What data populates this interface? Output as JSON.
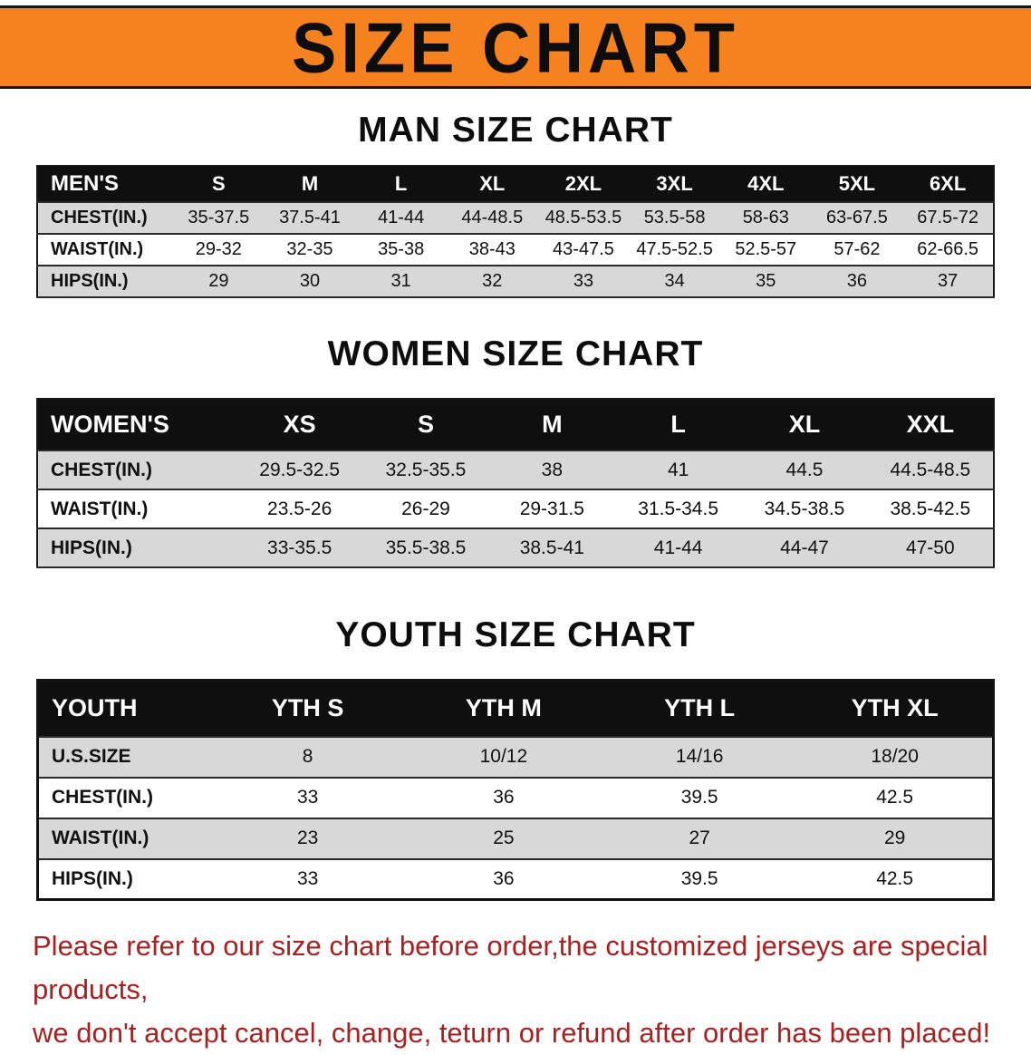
{
  "banner": {
    "title": "SIZE CHART"
  },
  "colors": {
    "banner_bg": "#f5821f",
    "table_header_bg": "#0f0f0f",
    "row_alt": "#d8d8d8",
    "footer_text": "#a82020"
  },
  "men": {
    "heading": "MAN SIZE CHART",
    "label": "MEN'S",
    "sizes": [
      "S",
      "M",
      "L",
      "XL",
      "2XL",
      "3XL",
      "4XL",
      "5XL",
      "6XL"
    ],
    "rows": [
      {
        "label": "CHEST(IN.)",
        "values": [
          "35-37.5",
          "37.5-41",
          "41-44",
          "44-48.5",
          "48.5-53.5",
          "53.5-58",
          "58-63",
          "63-67.5",
          "67.5-72"
        ]
      },
      {
        "label": "WAIST(IN.)",
        "values": [
          "29-32",
          "32-35",
          "35-38",
          "38-43",
          "43-47.5",
          "47.5-52.5",
          "52.5-57",
          "57-62",
          "62-66.5"
        ]
      },
      {
        "label": "HIPS(IN.)",
        "values": [
          "29",
          "30",
          "31",
          "32",
          "33",
          "34",
          "35",
          "36",
          "37"
        ]
      }
    ]
  },
  "women": {
    "heading": "WOMEN SIZE CHART",
    "label": "WOMEN'S",
    "sizes": [
      "XS",
      "S",
      "M",
      "L",
      "XL",
      "XXL"
    ],
    "rows": [
      {
        "label": "CHEST(IN.)",
        "values": [
          "29.5-32.5",
          "32.5-35.5",
          "38",
          "41",
          "44.5",
          "44.5-48.5"
        ]
      },
      {
        "label": "WAIST(IN.)",
        "values": [
          "23.5-26",
          "26-29",
          "29-31.5",
          "31.5-34.5",
          "34.5-38.5",
          "38.5-42.5"
        ]
      },
      {
        "label": "HIPS(IN.)",
        "values": [
          "33-35.5",
          "35.5-38.5",
          "38.5-41",
          "41-44",
          "44-47",
          "47-50"
        ]
      }
    ]
  },
  "youth": {
    "heading": "YOUTH SIZE CHART",
    "label": "YOUTH",
    "sizes": [
      "YTH S",
      "YTH M",
      "YTH L",
      "YTH XL"
    ],
    "rows": [
      {
        "label": "U.S.SIZE",
        "values": [
          "8",
          "10/12",
          "14/16",
          "18/20"
        ]
      },
      {
        "label": "CHEST(IN.)",
        "values": [
          "33",
          "36",
          "39.5",
          "42.5"
        ]
      },
      {
        "label": "WAIST(IN.)",
        "values": [
          "23",
          "25",
          "27",
          "29"
        ]
      },
      {
        "label": "HIPS(IN.)",
        "values": [
          "33",
          "36",
          "39.5",
          "42.5"
        ]
      }
    ]
  },
  "footer": {
    "line1": "Please refer to our size chart before order,the customized jerseys are special products,",
    "line2": "we don't accept cancel, change, teturn or refund after order has been placed!"
  }
}
